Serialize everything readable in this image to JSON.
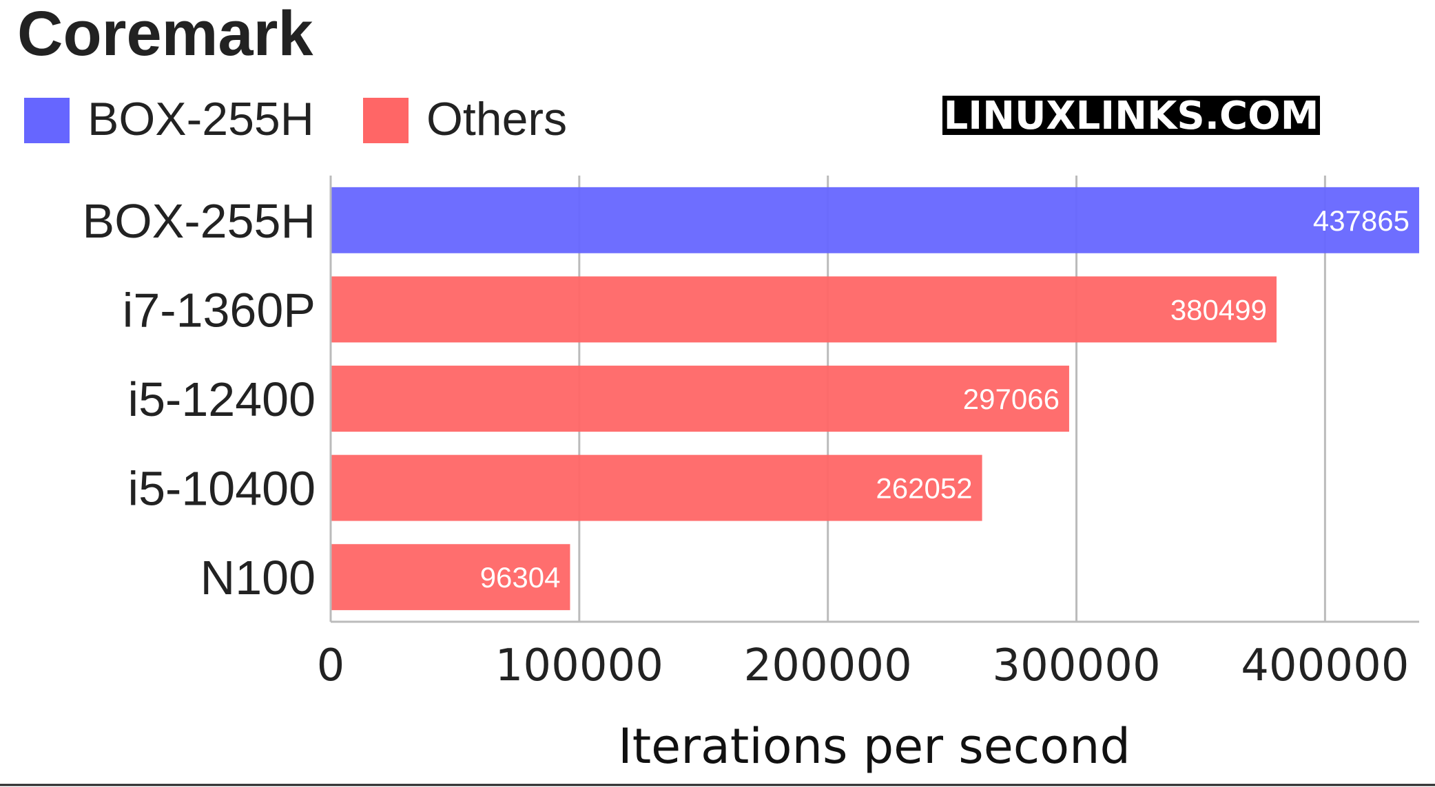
{
  "watermark": "LINUXLINKS.COM",
  "colors": {
    "highlight": "#6666ff",
    "others": "#ff6666",
    "grid": "#bbbbbb",
    "watermark_bg": "#000000"
  },
  "chart_data": {
    "type": "bar",
    "orientation": "horizontal",
    "title": "Coremark",
    "xlabel": "Iterations per second",
    "ylabel": "",
    "xlim": [
      0,
      437865
    ],
    "xticks": [
      0,
      100000,
      200000,
      300000,
      400000
    ],
    "xtick_labels": [
      "0",
      "100000",
      "200000",
      "300000",
      "400000"
    ],
    "grid": true,
    "legend": [
      {
        "name": "BOX-255H",
        "color": "#6666ff"
      },
      {
        "name": "Others",
        "color": "#ff6666"
      }
    ],
    "legend_position": "top-left",
    "categories": [
      "BOX-255H",
      "i7-1360P",
      "i5-12400",
      "i5-10400",
      "N100"
    ],
    "values": [
      437865,
      380499,
      297066,
      262052,
      96304
    ],
    "value_labels": [
      "437865",
      "380499",
      "297066",
      "262052",
      "96304"
    ],
    "groups": [
      "BOX-255H",
      "Others",
      "Others",
      "Others",
      "Others"
    ]
  }
}
